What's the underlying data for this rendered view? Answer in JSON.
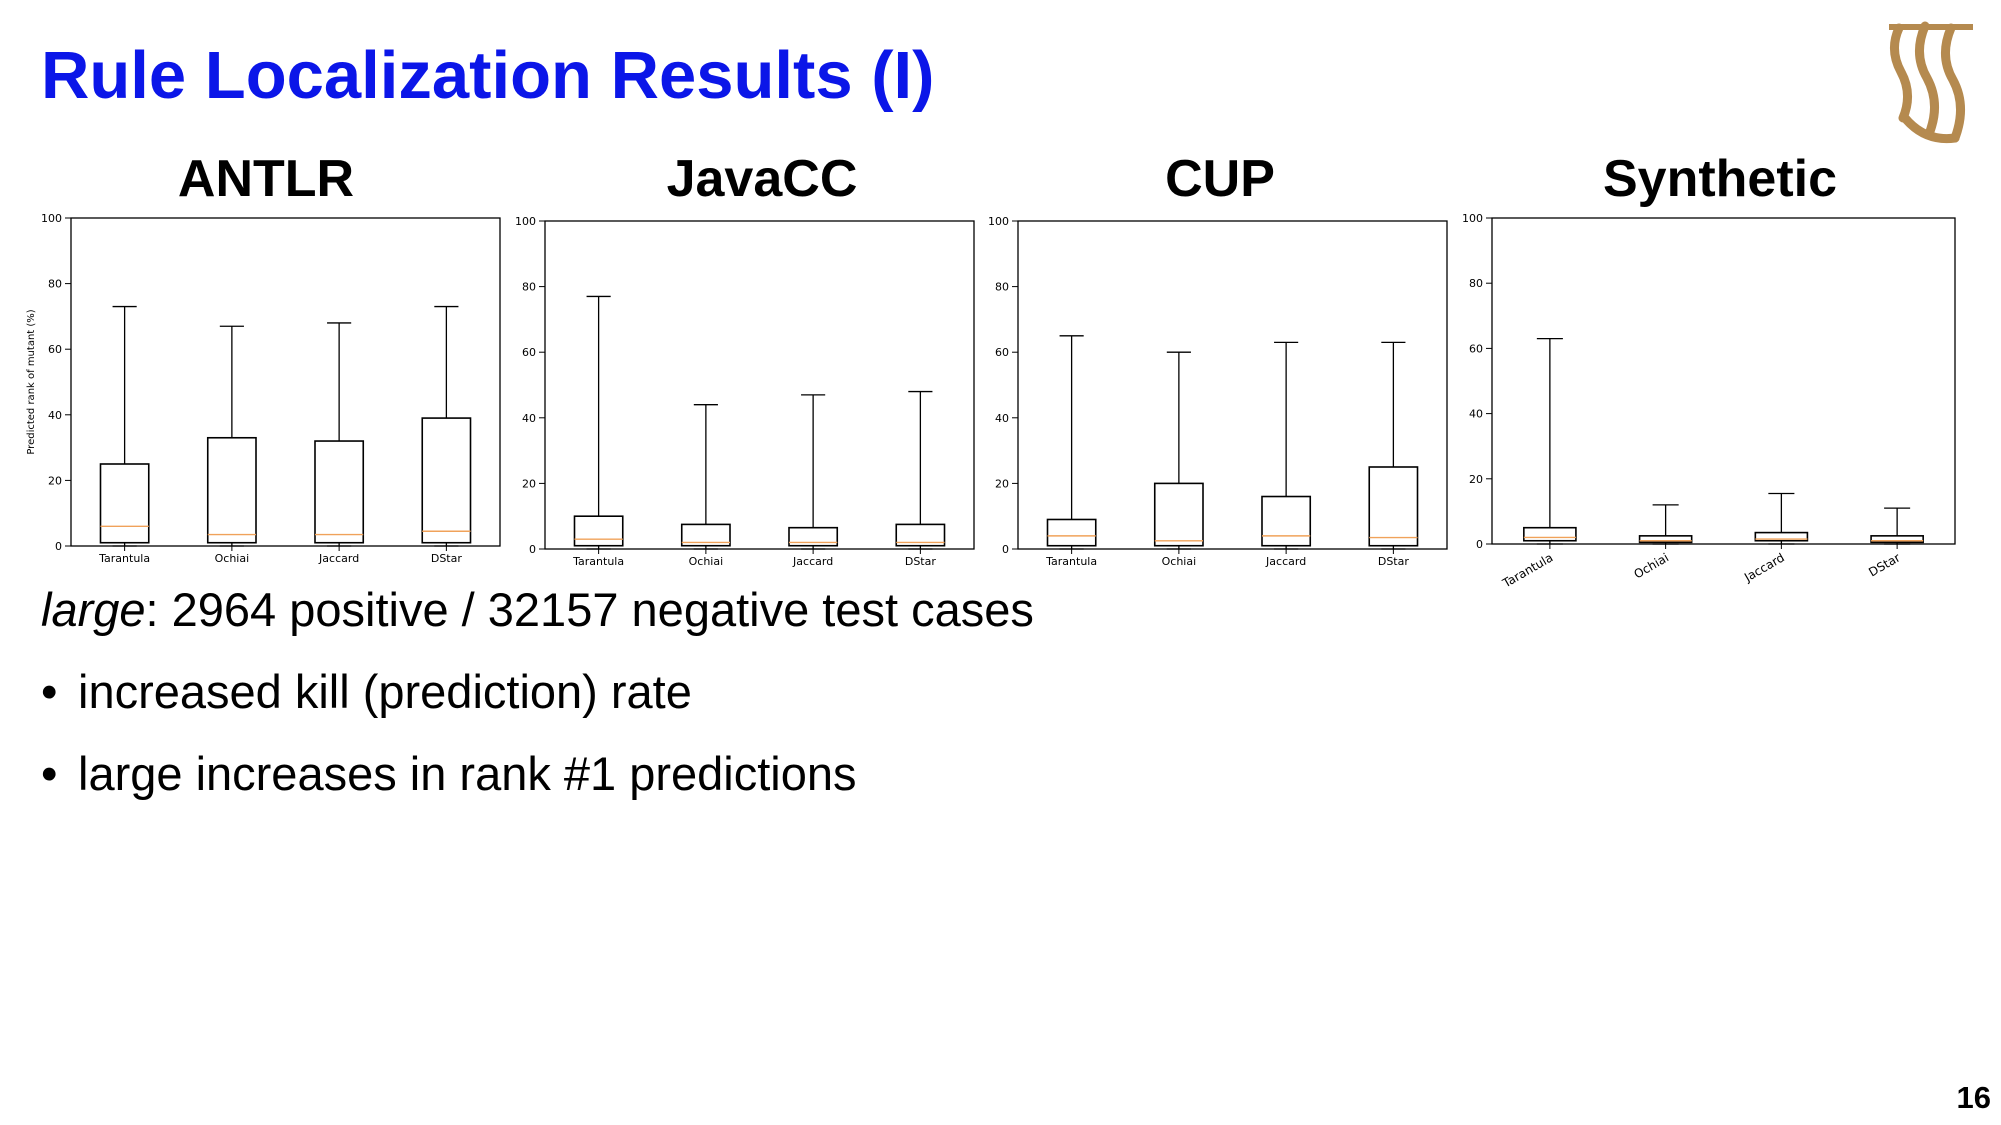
{
  "slide": {
    "title": "Rule Localization Results (I)",
    "page_number": "16",
    "brand_color": "#b58a4f",
    "title_color": "#0b16e8",
    "summary": {
      "emphasis": "large",
      "rest": ": 2964 positive / 32157 negative test cases"
    },
    "bullets": [
      "increased kill (prediction) rate",
      "large increases in rank #1 predictions"
    ]
  },
  "chart_data": [
    {
      "type": "box",
      "heading": "ANTLR",
      "ylabel": "Predicted rank of mutant (%)",
      "ylim": [
        0,
        100
      ],
      "yticks": [
        "0",
        "20",
        "40",
        "60",
        "80",
        "100"
      ],
      "categories": [
        "Tarantula",
        "Ochiai",
        "Jaccard",
        "DStar"
      ],
      "boxes": [
        {
          "whislo": 0,
          "q1": 1,
          "med": 6,
          "q3": 25,
          "whishi": 73
        },
        {
          "whislo": 0,
          "q1": 1,
          "med": 3.5,
          "q3": 33,
          "whishi": 67
        },
        {
          "whislo": 0,
          "q1": 1,
          "med": 3.5,
          "q3": 32,
          "whishi": 68
        },
        {
          "whislo": 0,
          "q1": 1,
          "med": 4.5,
          "q3": 39,
          "whishi": 73
        }
      ]
    },
    {
      "type": "box",
      "heading": "JavaCC",
      "ylabel": "",
      "ylim": [
        0,
        100
      ],
      "yticks": [
        "0",
        "20",
        "40",
        "60",
        "80",
        "100"
      ],
      "categories": [
        "Tarantula",
        "Ochiai",
        "Jaccard",
        "DStar"
      ],
      "boxes": [
        {
          "whislo": 0,
          "q1": 1,
          "med": 3,
          "q3": 10,
          "whishi": 77
        },
        {
          "whislo": 0,
          "q1": 1,
          "med": 2,
          "q3": 7.5,
          "whishi": 44
        },
        {
          "whislo": 0,
          "q1": 1,
          "med": 2,
          "q3": 6.5,
          "whishi": 47
        },
        {
          "whislo": 0,
          "q1": 1,
          "med": 2,
          "q3": 7.5,
          "whishi": 48
        }
      ]
    },
    {
      "type": "box",
      "heading": "CUP",
      "ylabel": "",
      "ylim": [
        0,
        100
      ],
      "yticks": [
        "0",
        "20",
        "40",
        "60",
        "80",
        "100"
      ],
      "categories": [
        "Tarantula",
        "Ochiai",
        "Jaccard",
        "DStar"
      ],
      "boxes": [
        {
          "whislo": 0,
          "q1": 1,
          "med": 4,
          "q3": 9,
          "whishi": 65
        },
        {
          "whislo": 0,
          "q1": 1,
          "med": 2.5,
          "q3": 20,
          "whishi": 60
        },
        {
          "whislo": 0,
          "q1": 1,
          "med": 4,
          "q3": 16,
          "whishi": 63
        },
        {
          "whislo": 0,
          "q1": 1,
          "med": 3.5,
          "q3": 25,
          "whishi": 63
        }
      ]
    },
    {
      "type": "box",
      "heading": "Synthetic",
      "ylabel": "",
      "ylim": [
        0,
        100
      ],
      "yticks": [
        "0",
        "20",
        "40",
        "60",
        "80",
        "100"
      ],
      "categories": [
        "Tarantula",
        "Ochiai",
        "Jaccard",
        "DStar"
      ],
      "xtick_rotation": 30,
      "boxes": [
        {
          "whislo": 0,
          "q1": 1,
          "med": 2,
          "q3": 5,
          "whishi": 63
        },
        {
          "whislo": 0,
          "q1": 0.5,
          "med": 1,
          "q3": 2.5,
          "whishi": 12
        },
        {
          "whislo": 0,
          "q1": 1,
          "med": 1.5,
          "q3": 3.5,
          "whishi": 15.5
        },
        {
          "whislo": 0,
          "q1": 0.5,
          "med": 1,
          "q3": 2.5,
          "whishi": 11
        }
      ]
    }
  ]
}
